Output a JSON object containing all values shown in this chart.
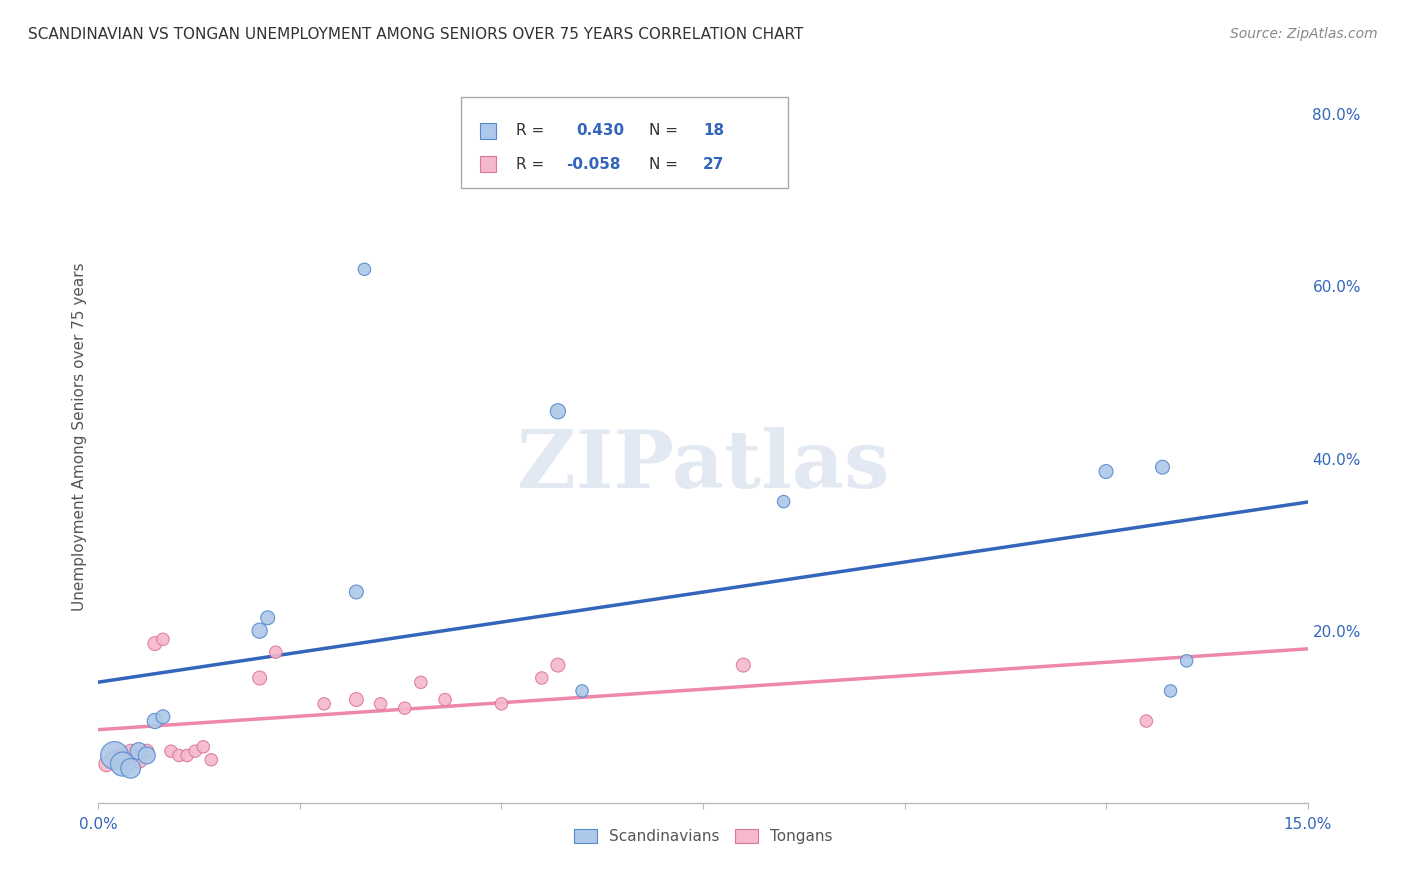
{
  "title": "SCANDINAVIAN VS TONGAN UNEMPLOYMENT AMONG SENIORS OVER 75 YEARS CORRELATION CHART",
  "source": "Source: ZipAtlas.com",
  "ylabel": "Unemployment Among Seniors over 75 years",
  "xlim": [
    0.0,
    0.15
  ],
  "ylim": [
    0.0,
    0.85
  ],
  "yticks_right": [
    0.2,
    0.4,
    0.6,
    0.8
  ],
  "ytick_labels_right": [
    "20.0%",
    "40.0%",
    "60.0%",
    "80.0%"
  ],
  "background_color": "#ffffff",
  "grid_color": "#cccccc",
  "watermark": "ZIPatlas",
  "scandinavians": {
    "label": "Scandinavians",
    "color": "#adc8e8",
    "edge_color": "#5588cc",
    "trend_color": "#3366bb",
    "x": [
      0.002,
      0.003,
      0.004,
      0.005,
      0.006,
      0.007,
      0.008,
      0.02,
      0.021,
      0.032,
      0.033,
      0.057,
      0.06,
      0.085,
      0.125,
      0.132,
      0.133,
      0.135
    ],
    "y": [
      0.055,
      0.045,
      0.04,
      0.06,
      0.055,
      0.095,
      0.1,
      0.2,
      0.215,
      0.245,
      0.62,
      0.455,
      0.13,
      0.35,
      0.385,
      0.39,
      0.13,
      0.165
    ],
    "sizes": [
      400,
      300,
      200,
      150,
      150,
      120,
      100,
      120,
      100,
      100,
      80,
      120,
      80,
      80,
      100,
      100,
      80,
      80
    ]
  },
  "tongans": {
    "label": "Tongans",
    "color": "#f5b8cc",
    "edge_color": "#dd7799",
    "trend_color": "#ee88aa",
    "x": [
      0.001,
      0.002,
      0.003,
      0.004,
      0.005,
      0.006,
      0.007,
      0.008,
      0.009,
      0.01,
      0.011,
      0.012,
      0.013,
      0.014,
      0.02,
      0.022,
      0.028,
      0.032,
      0.035,
      0.038,
      0.04,
      0.043,
      0.05,
      0.055,
      0.057,
      0.08,
      0.13
    ],
    "y": [
      0.045,
      0.05,
      0.055,
      0.06,
      0.05,
      0.06,
      0.185,
      0.19,
      0.06,
      0.055,
      0.055,
      0.06,
      0.065,
      0.05,
      0.145,
      0.175,
      0.115,
      0.12,
      0.115,
      0.11,
      0.14,
      0.12,
      0.115,
      0.145,
      0.16,
      0.16,
      0.095
    ],
    "sizes": [
      120,
      150,
      120,
      100,
      150,
      100,
      100,
      80,
      80,
      80,
      80,
      80,
      80,
      80,
      100,
      80,
      80,
      100,
      80,
      80,
      80,
      80,
      80,
      80,
      100,
      100,
      80
    ]
  },
  "legend_box_color": "#ffffff",
  "legend_border_color": "#aaaaaa",
  "legend_text_color": "#333333",
  "legend_val_color": "#3366bb",
  "title_color": "#333333",
  "source_color": "#888888",
  "axis_label_color": "#555555",
  "tick_color": "#3366bb"
}
